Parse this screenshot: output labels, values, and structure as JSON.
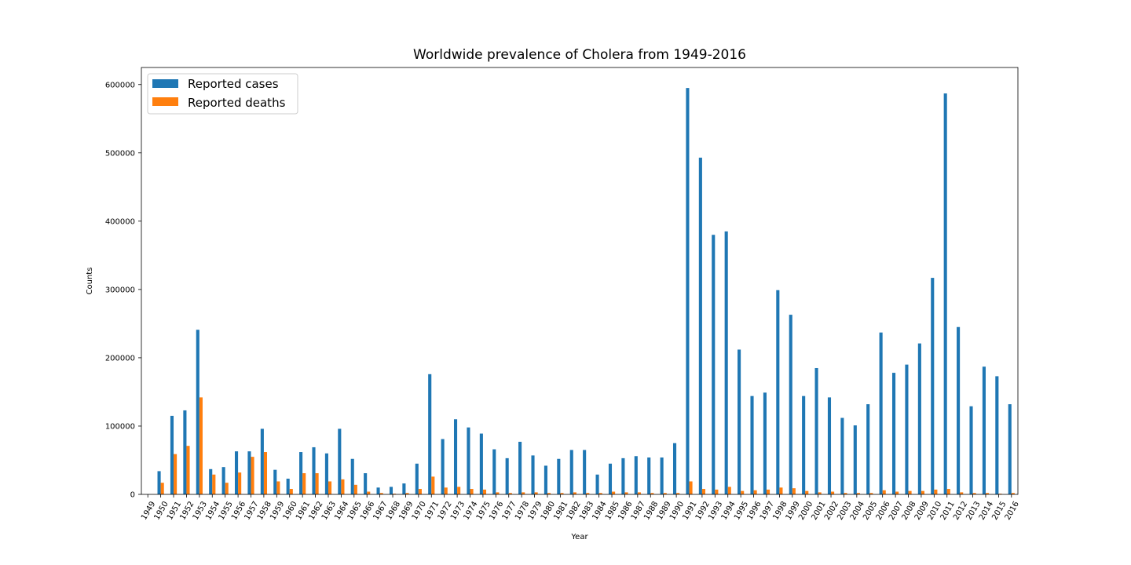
{
  "chart_data": {
    "type": "bar",
    "title": "Worldwide prevalence of Cholera from 1949-2016",
    "xlabel": "Year",
    "ylabel": "Counts",
    "ylim": [
      0,
      625000
    ],
    "yticks": [
      "0",
      "100000",
      "200000",
      "300000",
      "400000",
      "500000",
      "600000"
    ],
    "ytick_values": [
      0,
      100000,
      200000,
      300000,
      400000,
      500000,
      600000
    ],
    "legend_position": "top-left",
    "grid": false,
    "categories": [
      "1949",
      "1950",
      "1951",
      "1952",
      "1953",
      "1954",
      "1955",
      "1956",
      "1957",
      "1958",
      "1959",
      "1960",
      "1961",
      "1962",
      "1963",
      "1964",
      "1965",
      "1966",
      "1967",
      "1968",
      "1969",
      "1970",
      "1971",
      "1972",
      "1973",
      "1974",
      "1975",
      "1976",
      "1977",
      "1978",
      "1979",
      "1980",
      "1981",
      "1982",
      "1983",
      "1984",
      "1985",
      "1986",
      "1987",
      "1988",
      "1989",
      "1990",
      "1991",
      "1992",
      "1993",
      "1994",
      "1995",
      "1996",
      "1997",
      "1998",
      "1999",
      "2000",
      "2001",
      "2002",
      "2003",
      "2004",
      "2005",
      "2006",
      "2007",
      "2008",
      "2009",
      "2010",
      "2011",
      "2012",
      "2013",
      "2014",
      "2015",
      "2016"
    ],
    "series": [
      {
        "name": "Reported cases",
        "color": "#1f77b4",
        "values": [
          0,
          34000,
          115000,
          123000,
          241000,
          37000,
          40000,
          63000,
          63000,
          96000,
          36000,
          23000,
          62000,
          69000,
          60000,
          96000,
          52000,
          31000,
          10000,
          11000,
          16000,
          45000,
          176000,
          81000,
          110000,
          98000,
          89000,
          66000,
          53000,
          77000,
          57000,
          42000,
          52000,
          65000,
          65000,
          29000,
          45000,
          53000,
          56000,
          54000,
          54000,
          75000,
          595000,
          493000,
          380000,
          385000,
          212000,
          144000,
          149000,
          299000,
          263000,
          144000,
          185000,
          142000,
          112000,
          101000,
          132000,
          237000,
          178000,
          190000,
          221000,
          317000,
          587000,
          245000,
          129000,
          187000,
          173000,
          132000
        ]
      },
      {
        "name": "Reported deaths",
        "color": "#ff7f0e",
        "values": [
          0,
          17000,
          59000,
          71000,
          142000,
          29000,
          17000,
          32000,
          55000,
          62000,
          19000,
          8000,
          31000,
          31000,
          19000,
          22000,
          14000,
          4000,
          2000,
          1000,
          2000,
          8000,
          26000,
          10000,
          11000,
          8000,
          7000,
          3000,
          2000,
          3000,
          3000,
          2000,
          2000,
          3000,
          2000,
          2000,
          4000,
          3000,
          3000,
          2000,
          2000,
          2000,
          19000,
          8000,
          7000,
          11000,
          5000,
          6000,
          7000,
          10000,
          9000,
          5000,
          3000,
          4000,
          2000,
          2000,
          2000,
          6000,
          4000,
          5000,
          5000,
          7000,
          8000,
          3000,
          2000,
          2000,
          1000,
          2000
        ]
      }
    ]
  }
}
